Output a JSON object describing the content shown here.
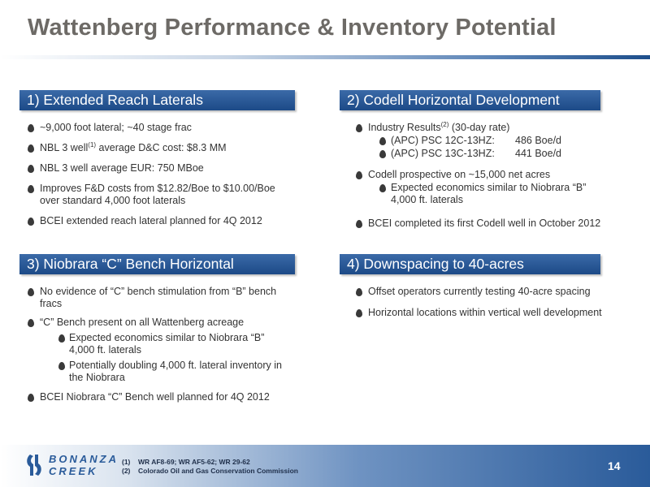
{
  "slide": {
    "title": "Wattenberg Performance & Inventory Potential",
    "page_number": "14"
  },
  "sections": [
    {
      "header": "1) Extended Reach Laterals",
      "bullets": [
        {
          "text": "~9,000 foot lateral; ~40 stage frac"
        },
        {
          "pre": "NBL 3 well",
          "sup": "(1)",
          "post": " average D&C cost: $8.3 MM"
        },
        {
          "text": "NBL 3 well average EUR: 750 MBoe"
        },
        {
          "line1": "Improves F&D costs from $12.82/Boe to $10.00/Boe",
          "line2": "over standard 4,000 foot laterals"
        },
        {
          "text": "BCEI extended reach lateral planned for 4Q 2012"
        }
      ]
    },
    {
      "header": "2) Codell Horizontal Development",
      "bullets": [
        {
          "pre": "Industry Results",
          "sup": "(2)",
          "post": " (30-day rate)"
        },
        {
          "well": "(APC) PSC 12C-13HZ:",
          "rate": "486 Boe/d"
        },
        {
          "well": "(APC) PSC 13C-13HZ:",
          "rate": "441 Boe/d"
        },
        {
          "text": "Codell prospective on ~15,000 net acres"
        },
        {
          "line1": "Expected economics similar to Niobrara “B”",
          "line2": "4,000 ft. laterals"
        },
        {
          "text": "BCEI completed its first Codell well in October 2012"
        }
      ]
    },
    {
      "header": "3) Niobrara “C” Bench Horizontal",
      "bullets": [
        {
          "line1": "No evidence of “C” bench stimulation from “B” bench",
          "line2": "fracs"
        },
        {
          "text": "“C” Bench present on all Wattenberg acreage"
        },
        {
          "line1": "Expected economics similar to Niobrara “B”",
          "line2": "4,000 ft. laterals"
        },
        {
          "line1": "Potentially doubling 4,000 ft. lateral inventory in",
          "line2": "the Niobrara"
        },
        {
          "text": "BCEI Niobrara “C” Bench well planned for 4Q 2012"
        }
      ]
    },
    {
      "header": "4) Downspacing to 40-acres",
      "bullets": [
        {
          "text": "Offset operators currently testing 40-acre spacing"
        },
        {
          "text": "Horizontal locations within vertical well development"
        }
      ]
    }
  ],
  "footer": {
    "logo_line1": "BONANZA",
    "logo_line2": "CREEK",
    "footnotes": [
      {
        "num": "(1)",
        "text": "WR AF8-69; WR AF5-62; WR 29-62"
      },
      {
        "num": "(2)",
        "text": "Colorado Oil and Gas Conservation Commission"
      }
    ]
  },
  "colors": {
    "title": "#6d6a66",
    "header_bar": "#1c4a87",
    "accent": "#2a5b9a",
    "bullet": "#3a3a3a"
  },
  "icons": {
    "bullet": "teardrop-bullet-icon",
    "logo": "bonanza-creek-logo-icon"
  }
}
